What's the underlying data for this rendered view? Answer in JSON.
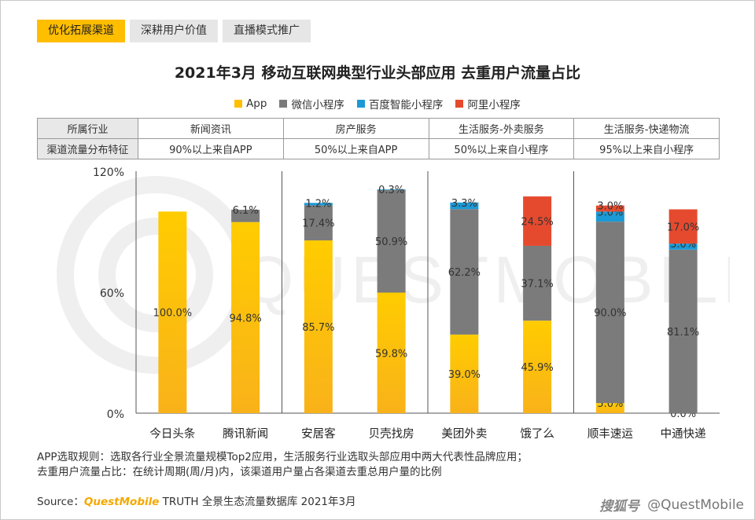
{
  "tabs": [
    {
      "label": "优化拓展渠道",
      "active": true
    },
    {
      "label": "深耕用户价值",
      "active": false
    },
    {
      "label": "直播模式推广",
      "active": false
    }
  ],
  "info_table": {
    "row1": {
      "header": "所属行业",
      "cells": [
        "新闻资讯",
        "房产服务",
        "生活服务-外卖服务",
        "生活服务-快递物流"
      ]
    },
    "row2": {
      "header": "渠道流量分布特征",
      "cells": [
        "90%以上来自APP",
        "50%以上来自APP",
        "50%以上来自小程序",
        "95%以上来自小程序"
      ]
    }
  },
  "notes": {
    "line1": "APP选取规则：选取各行业全景流量规模Top2应用，生活服务行业选取头部应用中两大代表性品牌应用；",
    "line2": "去重用户流量占比：在统计周期(周/月)内，该渠道用户量占各渠道去重总用户量的比例"
  },
  "source": {
    "prefix": "Source：",
    "brand": "QuestMobile",
    "suffix": " TRUTH 全景生态流量数据库 2021年3月"
  },
  "credit": {
    "logo": "搜狐号",
    "text": "@QuestMobile"
  },
  "watermark_text": "QUESTMOBILE",
  "chart_data": {
    "type": "bar",
    "stacked": true,
    "title": "2021年3月 移动互联网典型行业头部应用 去重用户流量占比",
    "categories": [
      "今日头条",
      "腾讯新闻",
      "安居客",
      "贝壳找房",
      "美团外卖",
      "饿了么",
      "顺丰速运",
      "中通快递"
    ],
    "series": [
      {
        "name": "App",
        "color": "#ffbe00",
        "values": [
          100.0,
          94.8,
          85.7,
          59.8,
          39.0,
          45.9,
          5.0,
          0.0
        ]
      },
      {
        "name": "微信小程序",
        "color": "#7b7b7b",
        "values": [
          0,
          6.1,
          17.4,
          50.9,
          62.2,
          37.1,
          90.0,
          81.1
        ]
      },
      {
        "name": "百度智能小程序",
        "color": "#1b9ad6",
        "values": [
          0,
          0,
          1.2,
          0.3,
          3.3,
          0,
          5.0,
          3.0
        ]
      },
      {
        "name": "阿里小程序",
        "color": "#e64a2e",
        "values": [
          0,
          0,
          0,
          0,
          0,
          24.5,
          3.0,
          17.0
        ]
      }
    ],
    "labels": [
      [
        "100.0%",
        null,
        null,
        null
      ],
      [
        "94.8%",
        "6.1%",
        null,
        null
      ],
      [
        "85.7%",
        "17.4%",
        "1.2%",
        null
      ],
      [
        "59.8%",
        "50.9%",
        "0.3%",
        null
      ],
      [
        "39.0%",
        "62.2%",
        "3.3%",
        null
      ],
      [
        "45.9%",
        "37.1%",
        null,
        "24.5%"
      ],
      [
        "5.0%",
        "90.0%",
        "5.0%",
        "3.0%"
      ],
      [
        "0.0%",
        "81.1%",
        "3.0%",
        "17.0%"
      ]
    ],
    "groups": [
      "新闻资讯",
      "房产服务",
      "生活服务-外卖服务",
      "生活服务-快递物流"
    ],
    "yticks": [
      "0%",
      "60%",
      "120%"
    ],
    "ylim": [
      0,
      120
    ]
  }
}
